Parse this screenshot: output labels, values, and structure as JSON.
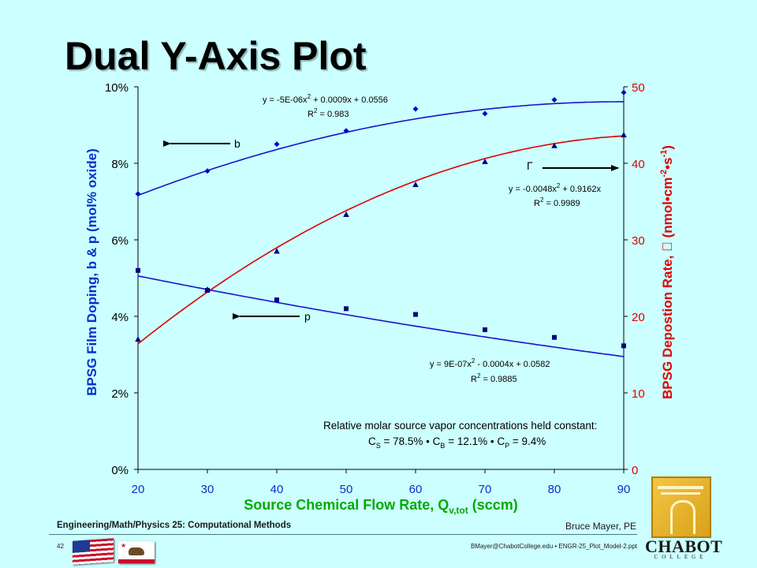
{
  "slide": {
    "title": "Dual Y-Axis Plot",
    "footer_course": "Engineering/Math/Physics 25: Computational Methods",
    "footer_author": "Bruce Mayer, PE",
    "footer_page": "42",
    "footer_file": "BMayer@ChabotCollege.edu  •  ENGR-25_Plot_Model-2.ppt",
    "logo_name": "CHABOT",
    "logo_sub": "COLLEGE",
    "flag_ca_text": "CALIFORNIA REPUBLIC"
  },
  "chart_data": {
    "type": "scatter",
    "x_axis": {
      "label_main": "Source Chemical Flow Rate, Q",
      "label_sub": "v,tot",
      "label_tail": " (sccm)",
      "range": [
        20,
        90
      ],
      "ticks": [
        20,
        30,
        40,
        50,
        60,
        70,
        80,
        90
      ],
      "tick_labels": [
        "20",
        "30",
        "40",
        "50",
        "60",
        "70",
        "80",
        "90"
      ]
    },
    "y_left": {
      "label": "BPSG Film Doping, b & p (mol% oxide)",
      "range": [
        0,
        10
      ],
      "ticks": [
        0,
        2,
        4,
        6,
        8,
        10
      ],
      "tick_labels": [
        "0%",
        "2%",
        "4%",
        "6%",
        "8%",
        "10%"
      ]
    },
    "y_right": {
      "label_main": "BPSG Depostion Rate,  (nmol•cm",
      "label_sup1": "-2",
      "label_mid": "•s",
      "label_sup2": "-1",
      "label_end": ")",
      "range": [
        0,
        50
      ],
      "ticks": [
        0,
        10,
        20,
        30,
        40,
        50
      ],
      "tick_labels": [
        "0",
        "10",
        "20",
        "30",
        "40",
        "50"
      ]
    },
    "series": [
      {
        "name": "b",
        "axis": "left",
        "marker": "diamond",
        "color": "#0000cc",
        "x": [
          20,
          30,
          40,
          50,
          60,
          70,
          80,
          90
        ],
        "y": [
          7.2,
          7.8,
          8.5,
          8.85,
          9.42,
          9.3,
          9.66,
          9.85
        ],
        "fit": {
          "a": -5e-06,
          "b": 0.0009,
          "c": 0.0556,
          "scale": 100
        },
        "fit_color": "#1515cc",
        "equation": [
          "y = -5E-06x",
          "2",
          " + 0.0009x + 0.0556"
        ],
        "r2": [
          "R",
          "2",
          " = 0.983"
        ]
      },
      {
        "name": "Γ",
        "axis": "right",
        "marker": "triangle",
        "color": "#000080",
        "x": [
          20,
          30,
          40,
          50,
          60,
          70,
          80,
          90
        ],
        "y": [
          17.0,
          23.5,
          28.5,
          33.3,
          37.2,
          40.2,
          42.3,
          43.7
        ],
        "fit": {
          "a": -0.0048,
          "b": 0.9162,
          "c": 0,
          "scale": 1
        },
        "fit_color": "#e00000",
        "equation": [
          "y = -0.0048x",
          "2",
          " + 0.9162x"
        ],
        "r2": [
          "R",
          "2",
          " = 0.9989"
        ]
      },
      {
        "name": "p",
        "axis": "left",
        "marker": "square",
        "color": "#000080",
        "x": [
          20,
          30,
          40,
          50,
          60,
          70,
          80,
          90
        ],
        "y": [
          5.2,
          4.68,
          4.43,
          4.2,
          4.05,
          3.65,
          3.45,
          3.23
        ],
        "fit": {
          "a": 9e-07,
          "b": -0.0004,
          "c": 0.0582,
          "scale": 100
        },
        "fit_color": "#1515cc",
        "equation": [
          "y = 9E-07x",
          "2",
          " - 0.0004x + 0.0582"
        ],
        "r2": [
          "R",
          "2",
          " = 0.9885"
        ]
      }
    ],
    "annotations": {
      "note_line1": "Relative molar source vapor concentrations held constant:",
      "note_cs_label": "C",
      "note_cs_sub": "S",
      "note_cs_val": " = 78.5%  •  ",
      "note_cb_label": "C",
      "note_cb_sub": "B",
      "note_cb_val": " = 12.1%  •  ",
      "note_cp_label": "C",
      "note_cp_sub": "P",
      "note_cp_val": " = 9.4%"
    },
    "colors": {
      "left_axis": "#0033cc",
      "right_axis": "#e00000",
      "x_label": "#00aa00",
      "frame": "#000000"
    },
    "grid": false
  }
}
